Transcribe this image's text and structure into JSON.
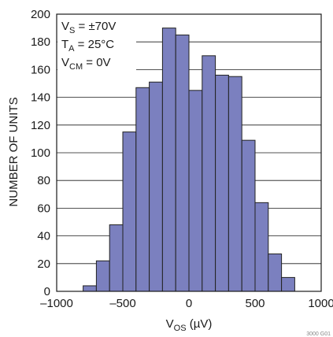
{
  "chart_data": {
    "type": "bar",
    "title": "",
    "xlabel": "V",
    "xlabel_sub": "OS",
    "xlabel_unit": " (µV)",
    "ylabel": "NUMBER OF UNITS",
    "xlim": [
      -1000,
      1000
    ],
    "ylim": [
      0,
      200
    ],
    "xticks": [
      -1000,
      -500,
      0,
      500,
      1000
    ],
    "xtick_labels": [
      "–1000",
      "–500",
      "0",
      "500",
      "1000"
    ],
    "yticks": [
      0,
      20,
      40,
      60,
      80,
      100,
      120,
      140,
      160,
      180,
      200
    ],
    "ytick_labels": [
      "0",
      "20",
      "40",
      "60",
      "80",
      "100",
      "120",
      "140",
      "160",
      "180",
      "200"
    ],
    "grid": true,
    "bin_width": 100,
    "bin_centers": [
      -750,
      -650,
      -550,
      -450,
      -350,
      -250,
      -150,
      -50,
      50,
      150,
      250,
      350,
      450,
      550,
      650,
      750
    ],
    "values": [
      4,
      22,
      48,
      115,
      147,
      151,
      190,
      185,
      145,
      170,
      156,
      155,
      109,
      64,
      27,
      10
    ],
    "bar_color": "#7b80bf",
    "bar_edge_color": "#222222",
    "annotations": [
      {
        "main": "V",
        "sub": "S",
        "rest": " = ±70V"
      },
      {
        "main": "T",
        "sub": "A",
        "rest": " = 25°C"
      },
      {
        "main": "V",
        "sub": "CM",
        "rest": " = 0V"
      }
    ]
  },
  "figure_id": "3000 G01"
}
